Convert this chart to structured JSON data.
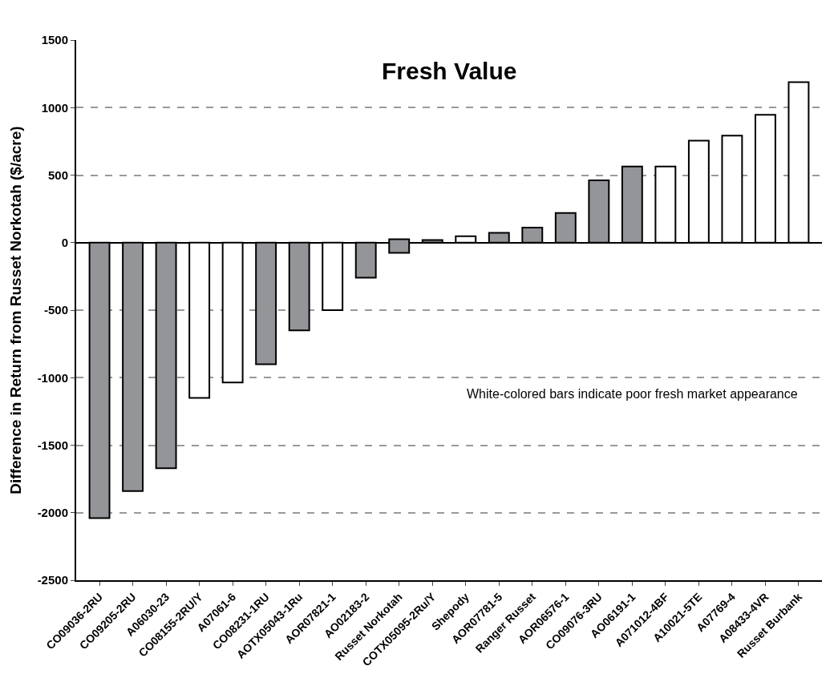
{
  "chart_data": {
    "type": "bar",
    "title": "Fresh Value",
    "ylabel": "Difference in Return from Russet Norkotah ($/acre)",
    "categories": [
      "CO09036-2RU",
      "CO09205-2RU",
      "A06030-23",
      "CO08155-2RU/Y",
      "A07061-6",
      "CO08231-1RU",
      "AOTX05043-1Ru",
      "AOR07821-1",
      "AO02183-2",
      "Russet Norkotah",
      "COTX05095-2Ru/Y",
      "Shepody",
      "AOR07781-5",
      "Ranger Russet",
      "AOR06576-1",
      "CO09076-3RU",
      "AO06191-1",
      "A071012-4BF",
      "A10021-5TE",
      "A07769-4",
      "A08433-4VR",
      "Russet Burbank"
    ],
    "values": [
      -2040,
      -1840,
      -1670,
      -1150,
      -1035,
      -900,
      -650,
      -500,
      -260,
      100,
      20,
      48,
      73,
      111,
      220,
      462,
      564,
      564,
      755,
      793,
      946,
      1188
    ],
    "base": [
      0,
      0,
      0,
      0,
      0,
      0,
      0,
      0,
      0,
      -75,
      0,
      0,
      0,
      0,
      0,
      0,
      0,
      0,
      0,
      0,
      0,
      0
    ],
    "colors": [
      "#939598",
      "#939598",
      "#939598",
      "#ffffff",
      "#ffffff",
      "#939598",
      "#939598",
      "#ffffff",
      "#939598",
      "#939598",
      "#939598",
      "#ffffff",
      "#939598",
      "#939598",
      "#939598",
      "#939598",
      "#939598",
      "#ffffff",
      "#ffffff",
      "#ffffff",
      "#ffffff",
      "#ffffff"
    ],
    "ylim": [
      -2500,
      1500
    ],
    "yticks": [
      -2500,
      -2000,
      -1500,
      -1000,
      -500,
      0,
      500,
      1000,
      1500
    ],
    "grid": "y",
    "annotations": [
      "White-colored bars indicate poor fresh market appearance"
    ]
  }
}
